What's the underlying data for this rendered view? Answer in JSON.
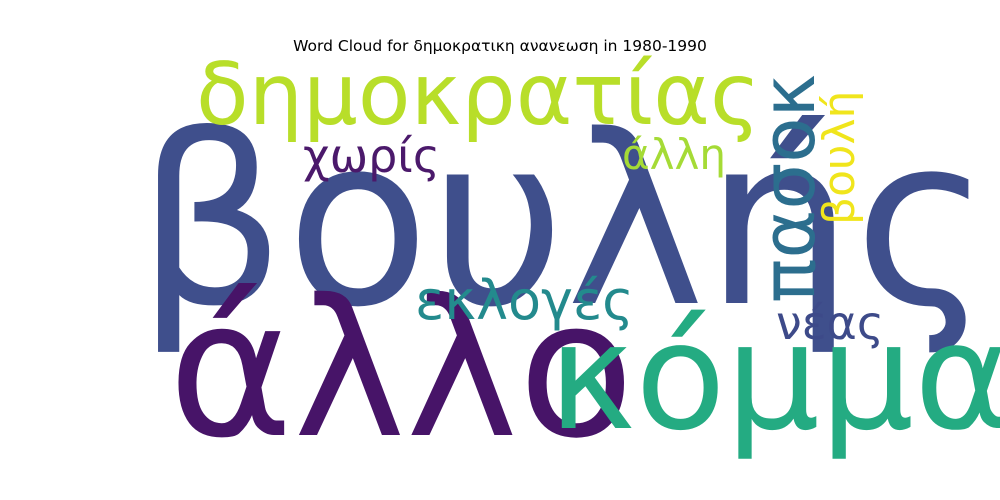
{
  "chart_data": {
    "type": "wordcloud",
    "title": "Word Cloud for δημοκρατικη ανανεωση in 1980-1990",
    "words": [
      {
        "text": "βουλής",
        "rank": 1,
        "color": "#3f4f8c",
        "orientation": "horizontal"
      },
      {
        "text": "άλλο",
        "rank": 2,
        "color": "#471468",
        "orientation": "horizontal"
      },
      {
        "text": "κόμμα",
        "rank": 3,
        "color": "#24ab82",
        "orientation": "horizontal"
      },
      {
        "text": "δημοκρατίας",
        "rank": 4,
        "color": "#b8de29",
        "orientation": "horizontal"
      },
      {
        "text": "πασοκ",
        "rank": 5,
        "color": "#2c6e8e",
        "orientation": "vertical"
      },
      {
        "text": "εκλογές",
        "rank": 6,
        "color": "#238a8d",
        "orientation": "horizontal"
      },
      {
        "text": "χωρίς",
        "rank": 7,
        "color": "#4b196b",
        "orientation": "horizontal"
      },
      {
        "text": "άλλη",
        "rank": 8,
        "color": "#a5db36",
        "orientation": "horizontal"
      },
      {
        "text": "βουλή",
        "rank": 9,
        "color": "#f0e51c",
        "orientation": "vertical"
      },
      {
        "text": "νέας",
        "rank": 10,
        "color": "#3d4a89",
        "orientation": "horizontal"
      }
    ]
  }
}
